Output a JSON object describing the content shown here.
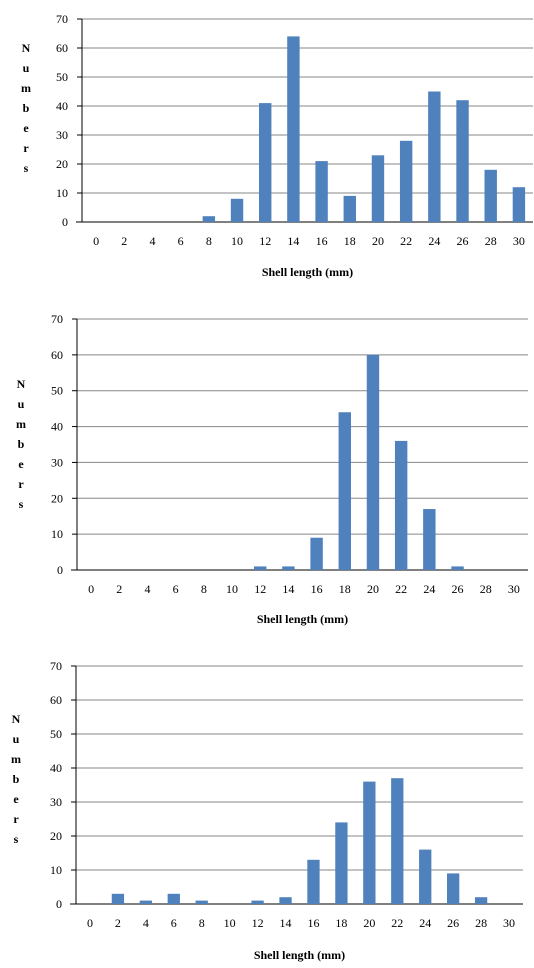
{
  "colors": {
    "bar": "#4f81bd",
    "grid": "#878787",
    "axis": "#000000",
    "text": "#000000"
  },
  "chart_data": [
    {
      "type": "bar",
      "title": "",
      "xlabel": "Shell  length (mm)",
      "ylabel": "Numbers",
      "ylim": [
        0,
        70
      ],
      "yticks": [
        0,
        10,
        20,
        30,
        40,
        50,
        60,
        70
      ],
      "grid": true,
      "categories": [
        "0",
        "2",
        "4",
        "6",
        "8",
        "10",
        "12",
        "14",
        "16",
        "18",
        "20",
        "22",
        "24",
        "26",
        "28",
        "30"
      ],
      "values": [
        0,
        0,
        0,
        0,
        2,
        8,
        41,
        64,
        21,
        9,
        23,
        28,
        45,
        42,
        18,
        12
      ]
    },
    {
      "type": "bar",
      "title": "",
      "xlabel": "Shell  length (mm)",
      "ylabel": "Numbers",
      "ylim": [
        0,
        70
      ],
      "yticks": [
        0,
        10,
        20,
        30,
        40,
        50,
        60,
        70
      ],
      "grid": true,
      "categories": [
        "0",
        "2",
        "4",
        "6",
        "8",
        "10",
        "12",
        "14",
        "16",
        "18",
        "20",
        "22",
        "24",
        "26",
        "28",
        "30"
      ],
      "values": [
        0,
        0,
        0,
        0,
        0,
        0,
        1,
        1,
        9,
        44,
        60,
        36,
        17,
        1,
        0,
        0
      ]
    },
    {
      "type": "bar",
      "title": "",
      "xlabel": "Shell  length (mm)",
      "ylabel": "Numbers",
      "ylim": [
        0,
        70
      ],
      "yticks": [
        0,
        10,
        20,
        30,
        40,
        50,
        60,
        70
      ],
      "grid": true,
      "categories": [
        "0",
        "2",
        "4",
        "6",
        "8",
        "10",
        "12",
        "14",
        "16",
        "18",
        "20",
        "22",
        "24",
        "26",
        "28",
        "30"
      ],
      "values": [
        0,
        3,
        1,
        3,
        1,
        0,
        1,
        2,
        13,
        24,
        36,
        37,
        16,
        9,
        2,
        0
      ]
    }
  ]
}
